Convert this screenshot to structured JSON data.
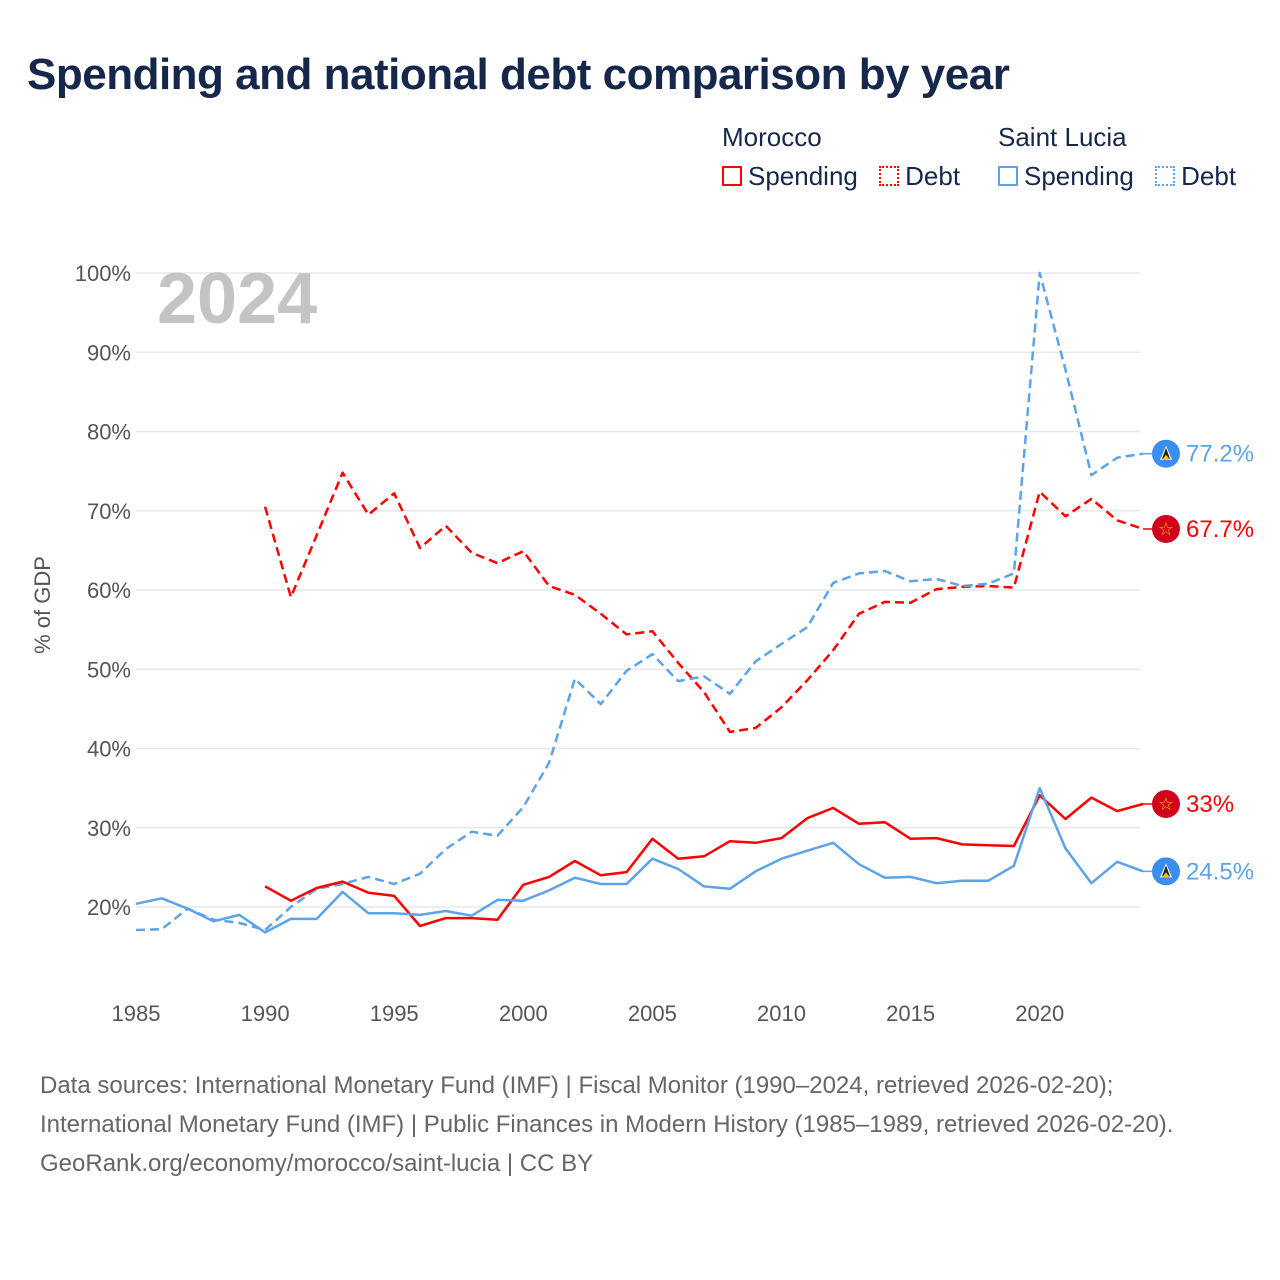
{
  "chart_data": {
    "type": "line",
    "title": "Spending and national debt comparison by year",
    "ylabel": "% of GDP",
    "xlabel": "",
    "year_label": "2024",
    "xlim": [
      1985,
      2024
    ],
    "ylim": [
      10,
      100
    ],
    "x_ticks": [
      1985,
      1990,
      1995,
      2000,
      2005,
      2010,
      2015,
      2020
    ],
    "y_ticks": [
      20,
      30,
      40,
      50,
      60,
      70,
      80,
      90,
      100
    ],
    "y_tick_labels": [
      "20%",
      "30%",
      "40%",
      "50%",
      "60%",
      "70%",
      "80%",
      "90%",
      "100%"
    ],
    "grid": true,
    "legend_position": "top-right",
    "legend": {
      "groups": [
        {
          "name": "Morocco",
          "items": [
            "Spending",
            "Debt"
          ]
        },
        {
          "name": "Saint Lucia",
          "items": [
            "Spending",
            "Debt"
          ]
        }
      ]
    },
    "x": [
      1985,
      1986,
      1987,
      1988,
      1989,
      1990,
      1991,
      1992,
      1993,
      1994,
      1995,
      1996,
      1997,
      1998,
      1999,
      2000,
      2001,
      2002,
      2003,
      2004,
      2005,
      2006,
      2007,
      2008,
      2009,
      2010,
      2011,
      2012,
      2013,
      2014,
      2015,
      2016,
      2017,
      2018,
      2019,
      2020,
      2021,
      2022,
      2023,
      2024
    ],
    "series": [
      {
        "name": "Morocco Debt",
        "country": "Morocco",
        "measure": "Debt",
        "color": "#ff0000",
        "dashed": true,
        "end_label": "67.7%",
        "flag": "morocco-flag",
        "values": [
          null,
          null,
          null,
          null,
          null,
          70.5,
          59.1,
          66.9,
          74.8,
          69.5,
          72.2,
          65.3,
          68.1,
          64.7,
          63.4,
          64.9,
          60.5,
          59.4,
          57.0,
          54.4,
          54.8,
          50.8,
          47.1,
          42.1,
          42.6,
          45.2,
          48.6,
          52.4,
          57.0,
          58.5,
          58.4,
          60.1,
          60.4,
          60.5,
          60.3,
          72.4,
          69.3,
          71.5,
          68.8,
          67.7
        ]
      },
      {
        "name": "Saint Lucia Debt",
        "country": "Saint Lucia",
        "measure": "Debt",
        "color": "#5ba3ea",
        "dashed": true,
        "end_label": "77.2%",
        "flag": "saint-lucia-flag",
        "values": [
          17.1,
          17.2,
          19.8,
          18.4,
          18.0,
          17.1,
          20.0,
          22.3,
          22.9,
          23.8,
          22.9,
          24.2,
          27.3,
          29.5,
          29.0,
          32.6,
          38.2,
          48.8,
          45.6,
          49.8,
          51.9,
          48.5,
          49.1,
          46.9,
          51.0,
          53.2,
          55.3,
          60.9,
          62.1,
          62.4,
          61.1,
          61.4,
          60.5,
          60.8,
          62.1,
          100.0,
          87.8,
          74.5,
          76.7,
          77.2
        ]
      },
      {
        "name": "Morocco Spending",
        "country": "Morocco",
        "measure": "Spending",
        "color": "#ff0000",
        "dashed": false,
        "end_label": "33%",
        "flag": "morocco-flag",
        "values": [
          null,
          null,
          null,
          null,
          null,
          22.6,
          20.8,
          22.4,
          23.2,
          21.8,
          21.4,
          17.6,
          18.6,
          18.6,
          18.4,
          22.8,
          23.8,
          25.8,
          24.0,
          24.4,
          28.6,
          26.1,
          26.4,
          28.3,
          28.1,
          28.7,
          31.2,
          32.5,
          30.5,
          30.7,
          28.6,
          28.7,
          27.9,
          27.8,
          27.7,
          34.1,
          31.1,
          33.8,
          32.1,
          33.0
        ]
      },
      {
        "name": "Saint Lucia Spending",
        "country": "Saint Lucia",
        "measure": "Spending",
        "color": "#5ba3ea",
        "dashed": false,
        "end_label": "24.5%",
        "flag": "saint-lucia-flag",
        "values": [
          20.4,
          21.1,
          19.8,
          18.2,
          19.0,
          16.8,
          18.5,
          18.5,
          21.9,
          19.2,
          19.2,
          19.0,
          19.5,
          18.9,
          20.9,
          20.8,
          22.1,
          23.7,
          22.9,
          22.9,
          26.1,
          24.8,
          22.6,
          22.3,
          24.5,
          26.1,
          27.1,
          28.1,
          25.4,
          23.7,
          23.8,
          23.0,
          23.3,
          23.3,
          25.2,
          35.0,
          27.4,
          23.0,
          25.7,
          24.5
        ]
      }
    ]
  },
  "colors": {
    "morocco": "#ff0000",
    "saint_lucia": "#5ba3ea",
    "title": "#15284b"
  },
  "footer": {
    "sources": "Data sources: International Monetary Fund (IMF) | Fiscal Monitor (1990–2024, retrieved 2026-02-20); International Monetary Fund (IMF) | Public Finances in Modern History (1985–1989, retrieved 2026-02-20).",
    "credit": "GeoRank.org/economy/morocco/saint-lucia | CC BY"
  }
}
